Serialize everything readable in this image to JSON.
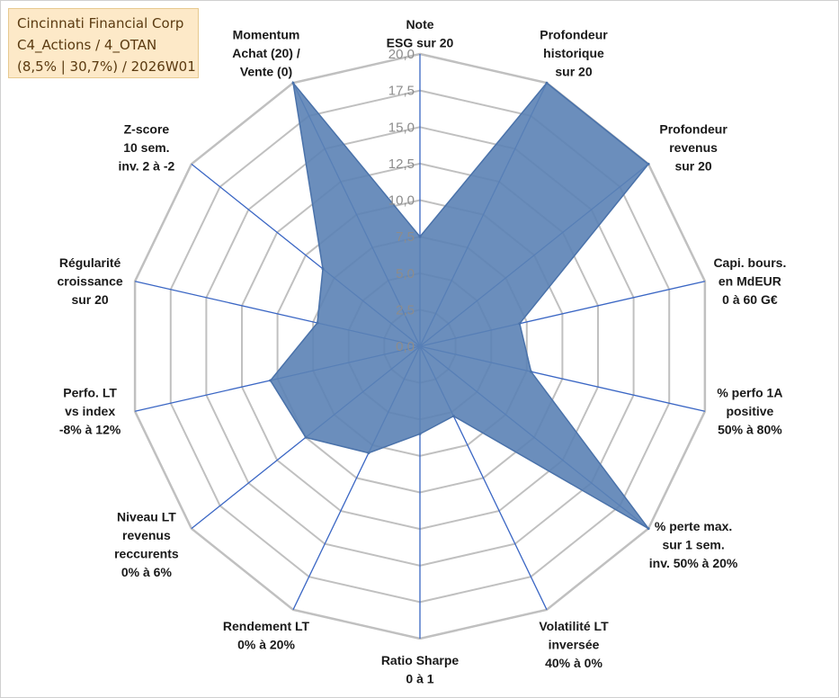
{
  "info": {
    "company": "Cincinnati Financial Corp",
    "portfolio": "C4_Actions / 4_OTAN",
    "stats": "(8,5% | 30,7%) / 2026W01"
  },
  "chart_data": {
    "type": "radar",
    "title": "Cincinnati Financial Corp",
    "rmin": 0,
    "rmax": 20,
    "rings": [
      2.5,
      5,
      7.5,
      10,
      12.5,
      15,
      17.5,
      20
    ],
    "tick_labels": [
      "0,0",
      "2,5",
      "5,0",
      "7,5",
      "10,0",
      "12,5",
      "15,0",
      "17,5",
      "20,0"
    ],
    "axes": [
      {
        "label": [
          "Note",
          "ESG sur 20"
        ],
        "value": 7.5
      },
      {
        "label": [
          "Profondeur",
          "historique",
          "sur 20"
        ],
        "value": 20
      },
      {
        "label": [
          "Profondeur",
          "revenus",
          "sur 20"
        ],
        "value": 20
      },
      {
        "label": [
          "Capi. bours.",
          "en MdEUR",
          "0 à 60 G€"
        ],
        "value": 7.0
      },
      {
        "label": [
          "% perfo 1A",
          "positive",
          "50% à 80%"
        ],
        "value": 7.8
      },
      {
        "label": [
          "% perte max.",
          "sur 1 sem.",
          "inv. 50% à 20%"
        ],
        "value": 20
      },
      {
        "label": [
          "Volatilité LT",
          "inversée",
          "40% à 0%"
        ],
        "value": 5.3
      },
      {
        "label": [
          "Ratio Sharpe",
          "0 à 1"
        ],
        "value": 6.0
      },
      {
        "label": [
          "Rendement LT",
          "0% à 20%"
        ],
        "value": 8.1
      },
      {
        "label": [
          "Niveau LT",
          "revenus",
          "reccurents",
          "0% à 6%"
        ],
        "value": 10.0
      },
      {
        "label": [
          "Perfo. LT",
          "vs index",
          "-8% à 12%"
        ],
        "value": 10.5
      },
      {
        "label": [
          "Régularité",
          "croissance",
          "sur 20"
        ],
        "value": 7.2
      },
      {
        "label": [
          "Z-score",
          "10 sem.",
          "inv. 2 à -2"
        ],
        "value": 8.5
      },
      {
        "label": [
          "Momentum",
          "Achat (20) /",
          "Vente (0)"
        ],
        "value": 20
      }
    ],
    "colors": {
      "fill": "#5b82b5",
      "stroke": "#4a72aa",
      "spoke": "#3a66c4",
      "grid": "#c0c0c0"
    }
  }
}
